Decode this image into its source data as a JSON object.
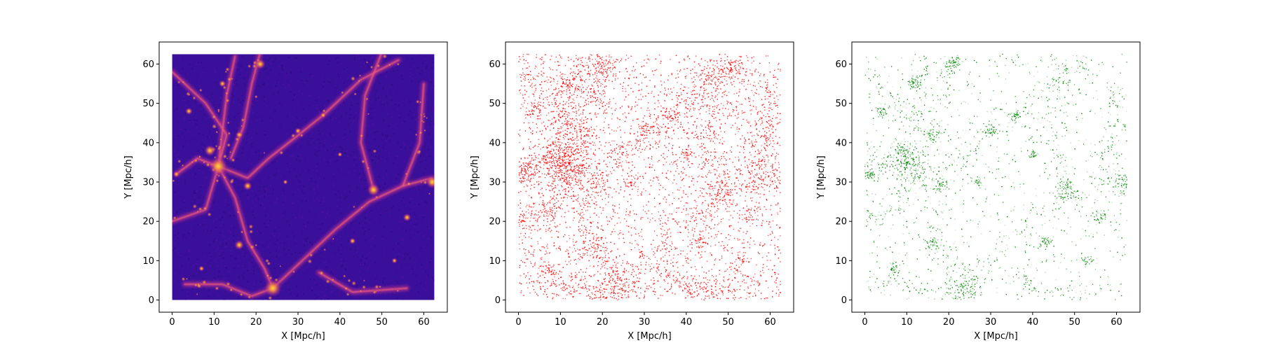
{
  "chart_data": [
    {
      "type": "heatmap",
      "xlabel": "X [Mpc/h]",
      "ylabel": "Y [Mpc/h]",
      "xlim": [
        -3.1,
        65.6
      ],
      "ylim": [
        -3.1,
        65.6
      ],
      "data_extent": [
        0,
        62.5
      ],
      "xticks": [
        0,
        10,
        20,
        30,
        40,
        50,
        60
      ],
      "yticks": [
        0,
        10,
        20,
        30,
        40,
        50,
        60
      ],
      "colormap": "plasma",
      "background_color": "#3a0f9a",
      "filaments": [
        [
          [
            0,
            58
          ],
          [
            8,
            50
          ],
          [
            13,
            42
          ],
          [
            11,
            34
          ]
        ],
        [
          [
            11,
            34
          ],
          [
            18,
            31
          ],
          [
            23,
            36
          ],
          [
            29,
            41
          ],
          [
            36,
            47
          ]
        ],
        [
          [
            11,
            34
          ],
          [
            15,
            26
          ],
          [
            18,
            15
          ],
          [
            22,
            8
          ],
          [
            24,
            3
          ]
        ],
        [
          [
            24,
            3
          ],
          [
            32,
            11
          ],
          [
            39,
            18
          ],
          [
            47,
            25
          ],
          [
            55,
            29
          ],
          [
            62,
            31
          ]
        ],
        [
          [
            21,
            63
          ],
          [
            19,
            55
          ],
          [
            17,
            44
          ],
          [
            14,
            36
          ]
        ],
        [
          [
            11,
            34
          ],
          [
            6,
            36
          ],
          [
            1,
            32
          ]
        ],
        [
          [
            11,
            34
          ],
          [
            13,
            52
          ],
          [
            15,
            62
          ]
        ],
        [
          [
            48,
            28
          ],
          [
            45,
            40
          ],
          [
            46,
            52
          ],
          [
            50,
            63
          ]
        ],
        [
          [
            0,
            20
          ],
          [
            8,
            23
          ],
          [
            11,
            34
          ]
        ],
        [
          [
            24,
            3
          ],
          [
            19,
            1
          ],
          [
            12,
            4
          ],
          [
            3,
            4
          ]
        ],
        [
          [
            36,
            47
          ],
          [
            45,
            56
          ],
          [
            54,
            61
          ]
        ],
        [
          [
            35,
            7
          ],
          [
            43,
            2
          ],
          [
            56,
            3
          ]
        ],
        [
          [
            55,
            29
          ],
          [
            59,
            40
          ],
          [
            60,
            55
          ]
        ]
      ],
      "knots": [
        [
          11,
          34,
          2.4
        ],
        [
          24,
          3,
          2.2
        ],
        [
          62,
          30,
          1.6
        ],
        [
          48,
          28,
          1.6
        ],
        [
          21,
          60,
          1.3
        ],
        [
          16,
          14,
          1.2
        ],
        [
          9,
          38,
          1.4
        ],
        [
          18,
          29,
          1.1
        ],
        [
          12,
          55,
          0.9
        ],
        [
          4,
          48,
          0.9
        ],
        [
          56,
          21,
          1.0
        ],
        [
          30,
          43,
          0.8
        ],
        [
          43,
          15,
          0.8
        ],
        [
          1,
          32,
          0.8
        ],
        [
          36,
          47,
          0.7
        ],
        [
          16,
          42,
          0.9
        ],
        [
          7,
          8,
          0.7
        ],
        [
          53,
          10,
          0.7
        ],
        [
          27,
          30,
          0.6
        ],
        [
          40,
          37,
          0.6
        ]
      ]
    },
    {
      "type": "scatter",
      "xlabel": "X [Mpc/h]",
      "ylabel": "Y [Mpc/h]",
      "xlim": [
        -3.1,
        65.6
      ],
      "ylim": [
        -3.1,
        65.6
      ],
      "data_extent": [
        0,
        62.5
      ],
      "xticks": [
        0,
        10,
        20,
        30,
        40,
        50,
        60
      ],
      "yticks": [
        0,
        10,
        20,
        30,
        40,
        50,
        60
      ],
      "color": "#ff0000",
      "approx_point_count": 6000
    },
    {
      "type": "scatter",
      "xlabel": "X [Mpc/h]",
      "ylabel": "Y [Mpc/h]",
      "xlim": [
        -3.1,
        65.6
      ],
      "ylim": [
        -3.1,
        65.6
      ],
      "data_extent": [
        0,
        62.5
      ],
      "xticks": [
        0,
        10,
        20,
        30,
        40,
        50,
        60
      ],
      "yticks": [
        0,
        10,
        20,
        30,
        40,
        50,
        60
      ],
      "color": "#008000",
      "approx_point_count": 3000
    }
  ]
}
